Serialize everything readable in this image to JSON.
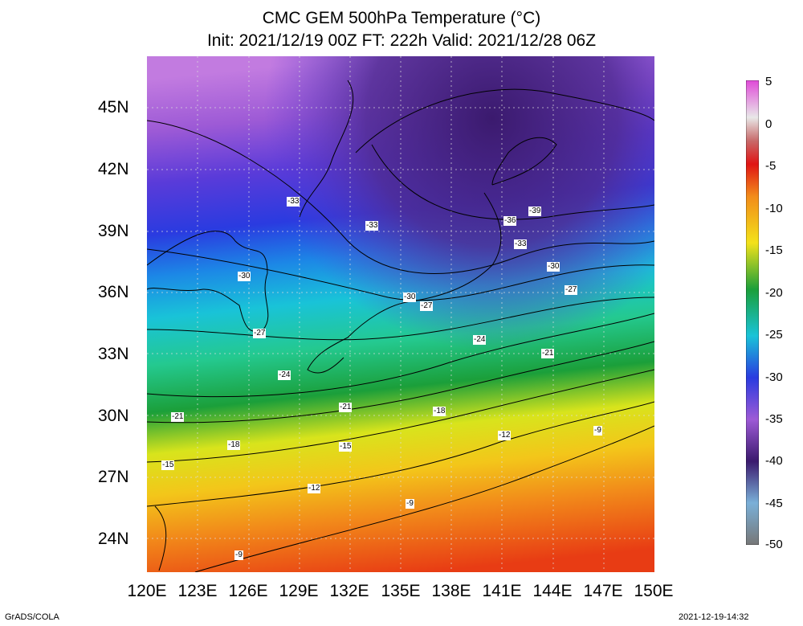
{
  "title_line1": "CMC GEM 500hPa Temperature (°C)",
  "title_line2": "Init: 2021/12/19 00Z  FT: 222h  Valid: 2021/12/28 06Z",
  "lat_labels": [
    "45N",
    "42N",
    "39N",
    "36N",
    "33N",
    "30N",
    "27N",
    "24N"
  ],
  "lon_labels": [
    "120E",
    "123E",
    "126E",
    "129E",
    "132E",
    "135E",
    "138E",
    "141E",
    "144E",
    "147E",
    "150E"
  ],
  "colorbar_labels": [
    "5",
    "0",
    "-5",
    "-10",
    "-15",
    "-20",
    "-25",
    "-30",
    "-35",
    "-40",
    "-45",
    "-50"
  ],
  "contour_labels": [
    "-39",
    "-36",
    "-33",
    "-33",
    "-33",
    "-30",
    "-30",
    "-30",
    "-27",
    "-27",
    "-27",
    "-24",
    "-24",
    "-21",
    "-21",
    "-21",
    "-18",
    "-18",
    "-15",
    "-15",
    "-12",
    "-12",
    "-9",
    "-9",
    "-9"
  ],
  "footer_left": "GrADS/COLA",
  "footer_right": "2021-12-19-14:32",
  "colors": {
    "warm": "#e83c14",
    "cold": "#3b1a6e",
    "accent": "#19b6c8"
  }
}
